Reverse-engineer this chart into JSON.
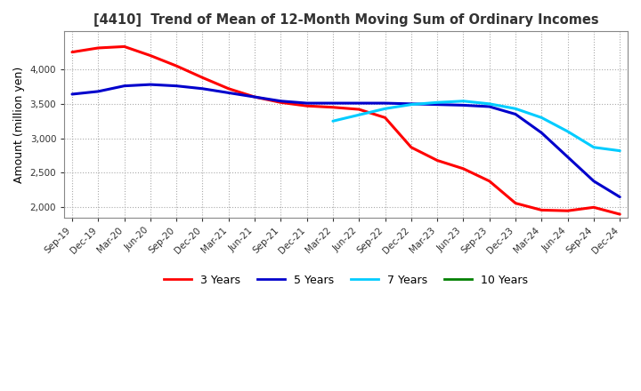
{
  "title": "[4410]  Trend of Mean of 12-Month Moving Sum of Ordinary Incomes",
  "ylabel": "Amount (million yen)",
  "ylim": [
    1850,
    4550
  ],
  "yticks": [
    2000,
    2500,
    3000,
    3500,
    4000
  ],
  "background_color": "#ffffff",
  "grid_color": "#aaaaaa",
  "series": {
    "3 Years": {
      "color": "#ff0000",
      "data": [
        [
          "Sep-19",
          4250
        ],
        [
          "Dec-19",
          4310
        ],
        [
          "Mar-20",
          4330
        ],
        [
          "Jun-20",
          4200
        ],
        [
          "Sep-20",
          4050
        ],
        [
          "Dec-20",
          3880
        ],
        [
          "Mar-21",
          3720
        ],
        [
          "Jun-21",
          3600
        ],
        [
          "Sep-21",
          3520
        ],
        [
          "Dec-21",
          3470
        ],
        [
          "Mar-22",
          3450
        ],
        [
          "Jun-22",
          3420
        ],
        [
          "Sep-22",
          3300
        ],
        [
          "Dec-22",
          2870
        ],
        [
          "Mar-23",
          2680
        ],
        [
          "Jun-23",
          2560
        ],
        [
          "Sep-23",
          2380
        ],
        [
          "Dec-23",
          2060
        ],
        [
          "Mar-24",
          1960
        ],
        [
          "Jun-24",
          1950
        ],
        [
          "Sep-24",
          2000
        ],
        [
          "Dec-24",
          1900
        ]
      ]
    },
    "5 Years": {
      "color": "#0000cc",
      "data": [
        [
          "Sep-19",
          3640
        ],
        [
          "Dec-19",
          3680
        ],
        [
          "Mar-20",
          3760
        ],
        [
          "Jun-20",
          3780
        ],
        [
          "Sep-20",
          3760
        ],
        [
          "Dec-20",
          3720
        ],
        [
          "Mar-21",
          3660
        ],
        [
          "Jun-21",
          3600
        ],
        [
          "Sep-21",
          3540
        ],
        [
          "Dec-21",
          3510
        ],
        [
          "Mar-22",
          3510
        ],
        [
          "Jun-22",
          3510
        ],
        [
          "Sep-22",
          3510
        ],
        [
          "Dec-22",
          3500
        ],
        [
          "Mar-23",
          3490
        ],
        [
          "Jun-23",
          3480
        ],
        [
          "Sep-23",
          3460
        ],
        [
          "Dec-23",
          3350
        ],
        [
          "Mar-24",
          3080
        ],
        [
          "Jun-24",
          2730
        ],
        [
          "Sep-24",
          2380
        ],
        [
          "Dec-24",
          2150
        ]
      ]
    },
    "7 Years": {
      "color": "#00ccff",
      "data": [
        [
          "Mar-22",
          3250
        ],
        [
          "Jun-22",
          3340
        ],
        [
          "Sep-22",
          3430
        ],
        [
          "Dec-22",
          3490
        ],
        [
          "Mar-23",
          3520
        ],
        [
          "Jun-23",
          3540
        ],
        [
          "Sep-23",
          3500
        ],
        [
          "Dec-23",
          3430
        ],
        [
          "Mar-24",
          3300
        ],
        [
          "Jun-24",
          3100
        ],
        [
          "Sep-24",
          2870
        ],
        [
          "Dec-24",
          2820
        ]
      ]
    },
    "10 Years": {
      "color": "#008000",
      "data": []
    }
  },
  "xtick_labels": [
    "Sep-19",
    "Dec-19",
    "Mar-20",
    "Jun-20",
    "Sep-20",
    "Dec-20",
    "Mar-21",
    "Jun-21",
    "Sep-21",
    "Dec-21",
    "Mar-22",
    "Jun-22",
    "Sep-22",
    "Dec-22",
    "Mar-23",
    "Jun-23",
    "Sep-23",
    "Dec-23",
    "Mar-24",
    "Jun-24",
    "Sep-24",
    "Dec-24"
  ],
  "legend_labels": [
    "3 Years",
    "5 Years",
    "7 Years",
    "10 Years"
  ],
  "legend_colors": [
    "#ff0000",
    "#0000cc",
    "#00ccff",
    "#008000"
  ]
}
